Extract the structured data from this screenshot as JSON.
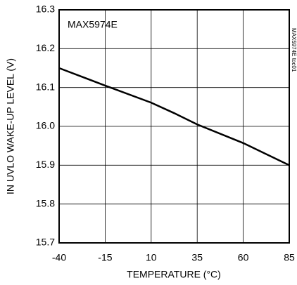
{
  "chart_data": {
    "type": "line",
    "annotations": [
      "MAX5974E",
      "MAX5974E toc01"
    ],
    "x_label": "TEMPERATURE (°C)",
    "y_label": "IN UVLO WAKE-UP LEVEL (V)",
    "x": [
      -40,
      -15,
      10,
      22.5,
      35,
      60,
      85
    ],
    "values": [
      16.15,
      16.105,
      16.061,
      16.034,
      16.005,
      15.957,
      15.9
    ],
    "color": "#000000",
    "xlim": [
      -40,
      85
    ],
    "xticks": [
      -40,
      -15,
      10,
      35,
      60,
      85
    ],
    "ylim": [
      15.7,
      16.3
    ],
    "yticks": [
      15.7,
      15.8,
      15.9,
      {
        "value": 16,
        "label": "16.0"
      },
      16.1,
      16.2,
      16.3
    ],
    "grid": true
  }
}
